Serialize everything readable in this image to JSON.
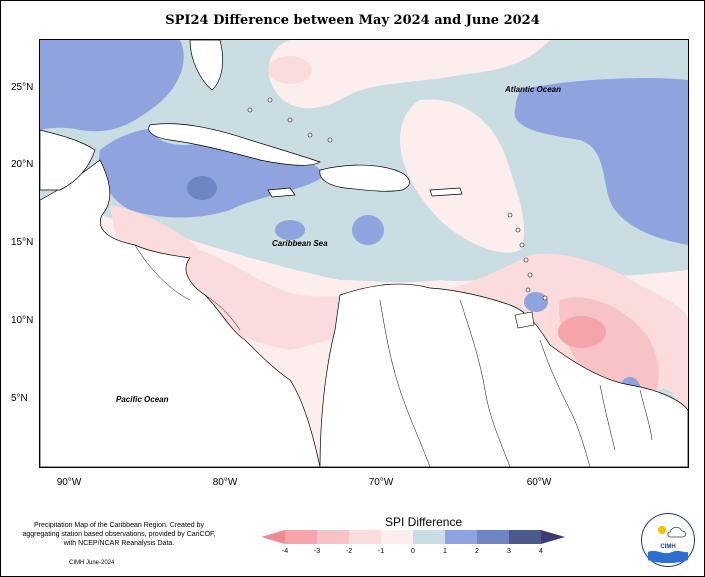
{
  "title": "SPI24 Difference between May 2024 and June 2024",
  "map_labels": {
    "atlantic": "Atlantic Ocean",
    "caribbean": "Caribbean Sea",
    "pacific": "Pacific Ocean"
  },
  "axes": {
    "lat_ticks": [
      "25°N",
      "20°N",
      "15°N",
      "10°N",
      "5°N"
    ],
    "lon_ticks": [
      "90°W",
      "80°W",
      "70°W",
      "60°W"
    ]
  },
  "legend": {
    "title": "SPI Difference",
    "ticks": [
      "-4",
      "-3",
      "-2",
      "-1",
      "0",
      "1",
      "2",
      "3",
      "4"
    ],
    "colors": [
      "#f4a4aa",
      "#f7c3c6",
      "#fadcdd",
      "#fdeeee",
      "#c9dde3",
      "#8fa4de",
      "#6f85c4",
      "#4a5a8c"
    ]
  },
  "footnote": "Precipitation Map of the Caribbean Region. Created by aggregating station based observations, provided by CariCOF, with NCEP/NCAR Reanalysis Data.",
  "credit": "CIMH June-2024",
  "logo_text": "CIMH"
}
